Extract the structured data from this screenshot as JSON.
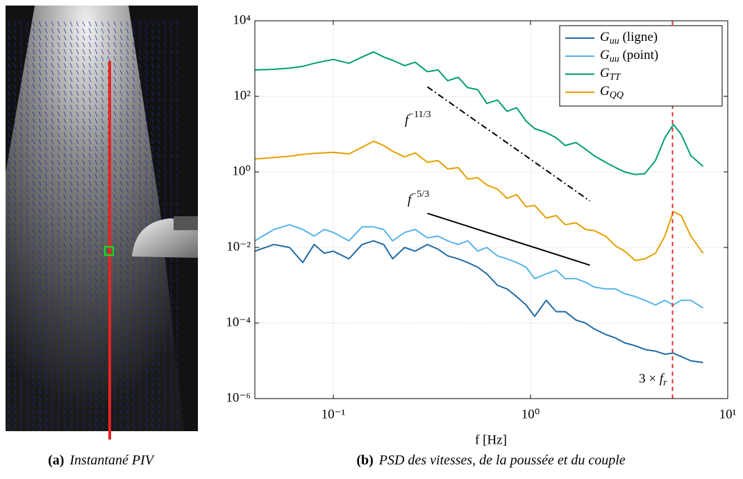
{
  "chart_data": {
    "type": "line",
    "x": [
      0.04,
      0.05,
      0.06,
      0.07,
      0.08,
      0.09,
      0.1,
      0.12,
      0.14,
      0.16,
      0.18,
      0.2,
      0.23,
      0.26,
      0.3,
      0.34,
      0.38,
      0.43,
      0.48,
      0.54,
      0.6,
      0.68,
      0.76,
      0.85,
      0.95,
      1.05,
      1.2,
      1.35,
      1.5,
      1.7,
      1.9,
      2.1,
      2.4,
      2.7,
      3.0,
      3.4,
      3.8,
      4.3,
      4.8,
      5.3,
      5.8,
      6.5,
      7.5
    ],
    "series": [
      {
        "name": "Guu (ligne)",
        "color": "#1f6aa5",
        "values": [
          0.008,
          0.012,
          0.01,
          0.004,
          0.012,
          0.007,
          0.008,
          0.005,
          0.012,
          0.015,
          0.012,
          0.005,
          0.01,
          0.008,
          0.012,
          0.009,
          0.006,
          0.005,
          0.004,
          0.003,
          0.002,
          0.001,
          0.0008,
          0.0005,
          0.0003,
          0.00015,
          0.0004,
          0.0002,
          0.0002,
          0.00012,
          0.0001,
          7e-05,
          5e-05,
          4e-05,
          3e-05,
          2.5e-05,
          2e-05,
          1.8e-05,
          1.5e-05,
          1.6e-05,
          1.3e-05,
          1e-05,
          9e-06
        ]
      },
      {
        "name": "Guu (point)",
        "color": "#56b4e9",
        "values": [
          0.015,
          0.03,
          0.04,
          0.03,
          0.02,
          0.03,
          0.025,
          0.015,
          0.035,
          0.035,
          0.03,
          0.015,
          0.025,
          0.03,
          0.018,
          0.02,
          0.015,
          0.012,
          0.015,
          0.008,
          0.01,
          0.006,
          0.005,
          0.004,
          0.003,
          0.0015,
          0.002,
          0.0025,
          0.0015,
          0.0015,
          0.0012,
          0.0009,
          0.0008,
          0.0008,
          0.0006,
          0.0005,
          0.0004,
          0.0003,
          0.0004,
          0.0003,
          0.0004,
          0.0004,
          0.00025
        ]
      },
      {
        "name": "GTT",
        "color": "#009e73",
        "values": [
          500,
          520,
          560,
          620,
          750,
          850,
          950,
          750,
          1100,
          1500,
          1100,
          900,
          650,
          800,
          450,
          500,
          260,
          320,
          170,
          150,
          65,
          80,
          40,
          50,
          22,
          14,
          11,
          8,
          5,
          6,
          4,
          2.7,
          1.8,
          1.3,
          1.0,
          0.85,
          0.9,
          2,
          8,
          18,
          10,
          2.7,
          1.4
        ]
      },
      {
        "name": "GQQ",
        "color": "#e69f00",
        "values": [
          2.2,
          2.4,
          2.6,
          2.9,
          3.1,
          3.2,
          3.3,
          3.0,
          4.5,
          6.5,
          5,
          3.5,
          2.5,
          3.2,
          1.8,
          2,
          1.2,
          1.3,
          0.65,
          0.7,
          0.45,
          0.35,
          0.2,
          0.25,
          0.12,
          0.13,
          0.06,
          0.07,
          0.04,
          0.045,
          0.03,
          0.028,
          0.02,
          0.011,
          0.008,
          0.0045,
          0.005,
          0.007,
          0.02,
          0.09,
          0.07,
          0.02,
          0.007
        ]
      }
    ],
    "xlabel": "f [Hz]",
    "xscale": "log",
    "yscale": "log",
    "xlim": [
      0.04,
      10
    ],
    "ylim": [
      1e-06,
      10000
    ],
    "xticks": [
      {
        "value": 0.1,
        "label": "10⁻¹"
      },
      {
        "value": 1,
        "label": "10⁰"
      },
      {
        "value": 10,
        "label": "10¹"
      }
    ],
    "yticks": [
      {
        "value": 1e-06,
        "label": "10⁻⁶"
      },
      {
        "value": 0.0001,
        "label": "10⁻⁴"
      },
      {
        "value": 0.01,
        "label": "10⁻²"
      },
      {
        "value": 1,
        "label": "10⁰"
      },
      {
        "value": 100,
        "label": "10²"
      },
      {
        "value": 10000,
        "label": "10⁴"
      }
    ],
    "grid": true,
    "legend": "top-right",
    "reference_lines": [
      {
        "label": "f−11/3",
        "x": [
          0.3,
          2
        ],
        "y": [
          178,
          0.17
        ],
        "style": "dash-dot",
        "color": "#000000"
      },
      {
        "label": "f−5/3",
        "x": [
          0.3,
          2
        ],
        "y": [
          0.08,
          0.0034
        ],
        "style": "solid",
        "color": "#000000"
      }
    ],
    "vline": {
      "x": 5.25,
      "label": "3 × fr",
      "color": "#e03030"
    }
  },
  "captions": [
    {
      "tag": "(a)",
      "text": "Instantané PIV"
    },
    {
      "tag": "(b)",
      "text": "PSD des vitesses, de la poussée et du couple"
    }
  ]
}
